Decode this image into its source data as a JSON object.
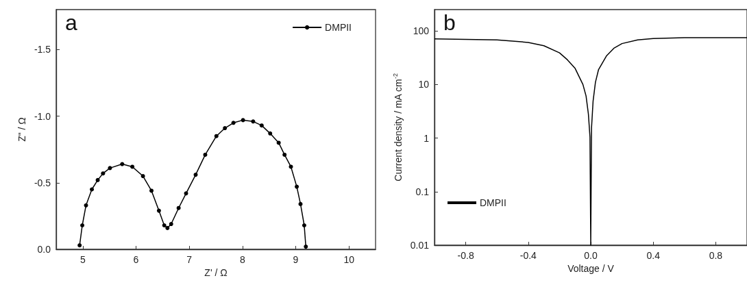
{
  "chart_data": [
    {
      "type": "line",
      "title": "a",
      "xlabel": "Z' / Ω",
      "ylabel": "Z\" / Ω",
      "xlim": [
        4.5,
        10.5
      ],
      "xticks": [
        5,
        6,
        7,
        8,
        9,
        10
      ],
      "ylim": [
        0,
        -1.8
      ],
      "yticks": [
        {
          "value": 0,
          "label": "0.0"
        },
        {
          "value": -0.5,
          "label": "-0.5"
        },
        {
          "value": -1,
          "label": "-1.0"
        },
        {
          "value": -1.5,
          "label": "-1.5"
        }
      ],
      "marker": "circle",
      "legend": "top right",
      "grid": false,
      "series": [
        {
          "name": "DMPII",
          "color": "#000000",
          "x": [
            4.94,
            4.99,
            5.06,
            5.17,
            5.28,
            5.38,
            5.51,
            5.74,
            5.93,
            6.13,
            6.29,
            6.43,
            6.53,
            6.59,
            6.66,
            6.8,
            6.94,
            7.12,
            7.3,
            7.51,
            7.67,
            7.83,
            8.01,
            8.2,
            8.36,
            8.52,
            8.68,
            8.79,
            8.91,
            9.02,
            9.09,
            9.16,
            9.19
          ],
          "values": [
            -0.03,
            -0.18,
            -0.33,
            -0.45,
            -0.52,
            -0.57,
            -0.61,
            -0.64,
            -0.62,
            -0.55,
            -0.44,
            -0.29,
            -0.18,
            -0.16,
            -0.19,
            -0.31,
            -0.42,
            -0.56,
            -0.71,
            -0.85,
            -0.91,
            -0.95,
            -0.97,
            -0.96,
            -0.93,
            -0.87,
            -0.8,
            -0.71,
            -0.62,
            -0.47,
            -0.34,
            -0.18,
            -0.02
          ]
        }
      ]
    },
    {
      "type": "line",
      "title": "b",
      "xlabel": "Voltage / V",
      "ylabel": "Current density / mA cm$^{-2}$",
      "xlim": [
        -1,
        1
      ],
      "xticks": [
        -0.8,
        -0.4,
        {
          "value": 0,
          "label": "0.0"
        },
        0.4,
        0.8
      ],
      "ylim": [
        0.01,
        250
      ],
      "yticks": [
        0.01,
        0.1,
        1,
        10,
        100
      ],
      "log": true,
      "marker": "none",
      "legend": "bottom left",
      "grid": false,
      "series": [
        {
          "name": "DMPII",
          "color": "#000000",
          "x": [
            -1,
            -0.6,
            -0.4,
            -0.3,
            -0.2,
            -0.15,
            -0.1,
            -0.05,
            -0.03,
            -0.015,
            -0.005,
            0,
            0.005,
            0.015,
            0.03,
            0.05,
            0.1,
            0.15,
            0.2,
            0.3,
            0.4,
            0.6,
            0.8,
            1
          ],
          "values": [
            71,
            68,
            61,
            53,
            39,
            29,
            20,
            10,
            6.1,
            2.8,
            1.05,
            0.01,
            1.55,
            4.9,
            11,
            19,
            34,
            48,
            58,
            68,
            72,
            75,
            75,
            75
          ]
        }
      ]
    }
  ]
}
